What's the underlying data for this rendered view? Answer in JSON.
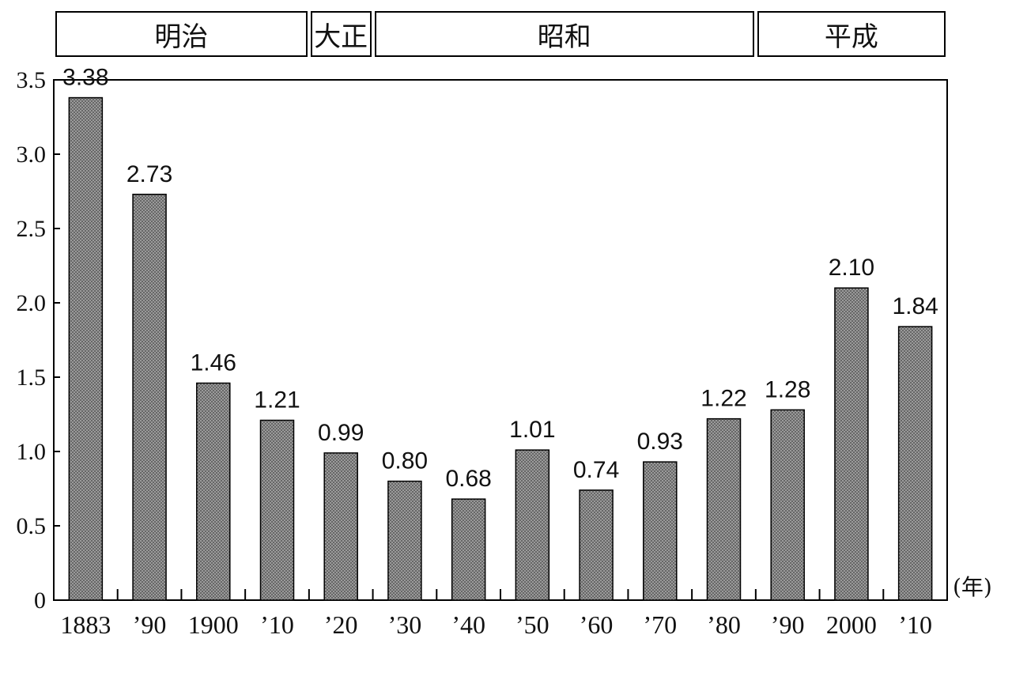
{
  "eras": [
    {
      "label": "明治",
      "from_index": 0,
      "to_index": 3
    },
    {
      "label": "大正",
      "from_index": 4,
      "to_index": 4
    },
    {
      "label": "昭和",
      "from_index": 5,
      "to_index": 10
    },
    {
      "label": "平成",
      "from_index": 11,
      "to_index": 13
    }
  ],
  "chart_data": {
    "type": "bar",
    "title": "",
    "xlabel": "(年)",
    "ylabel": "",
    "categories": [
      "1883",
      "’90",
      "1900",
      "’10",
      "’20",
      "’30",
      "’40",
      "’50",
      "’60",
      "’70",
      "’80",
      "’90",
      "2000",
      "’10"
    ],
    "values": [
      3.38,
      2.73,
      1.46,
      1.21,
      0.99,
      0.8,
      0.68,
      1.01,
      0.74,
      0.93,
      1.22,
      1.28,
      2.1,
      1.84
    ],
    "value_labels": [
      "3.38",
      "2.73",
      "1.46",
      "1.21",
      "0.99",
      "0.80",
      "0.68",
      "1.01",
      "0.74",
      "0.93",
      "1.22",
      "1.28",
      "2.10",
      "1.84"
    ],
    "ylim": [
      0,
      3.5
    ],
    "yticks": [
      0,
      0.5,
      1.0,
      1.5,
      2.0,
      2.5,
      3.0,
      3.5
    ],
    "ytick_labels": [
      "0",
      "0.5",
      "1.0",
      "1.5",
      "2.0",
      "2.5",
      "3.0",
      "3.5"
    ],
    "grid": false,
    "legend": "none",
    "bar_pattern": "crosshatch-gray"
  }
}
